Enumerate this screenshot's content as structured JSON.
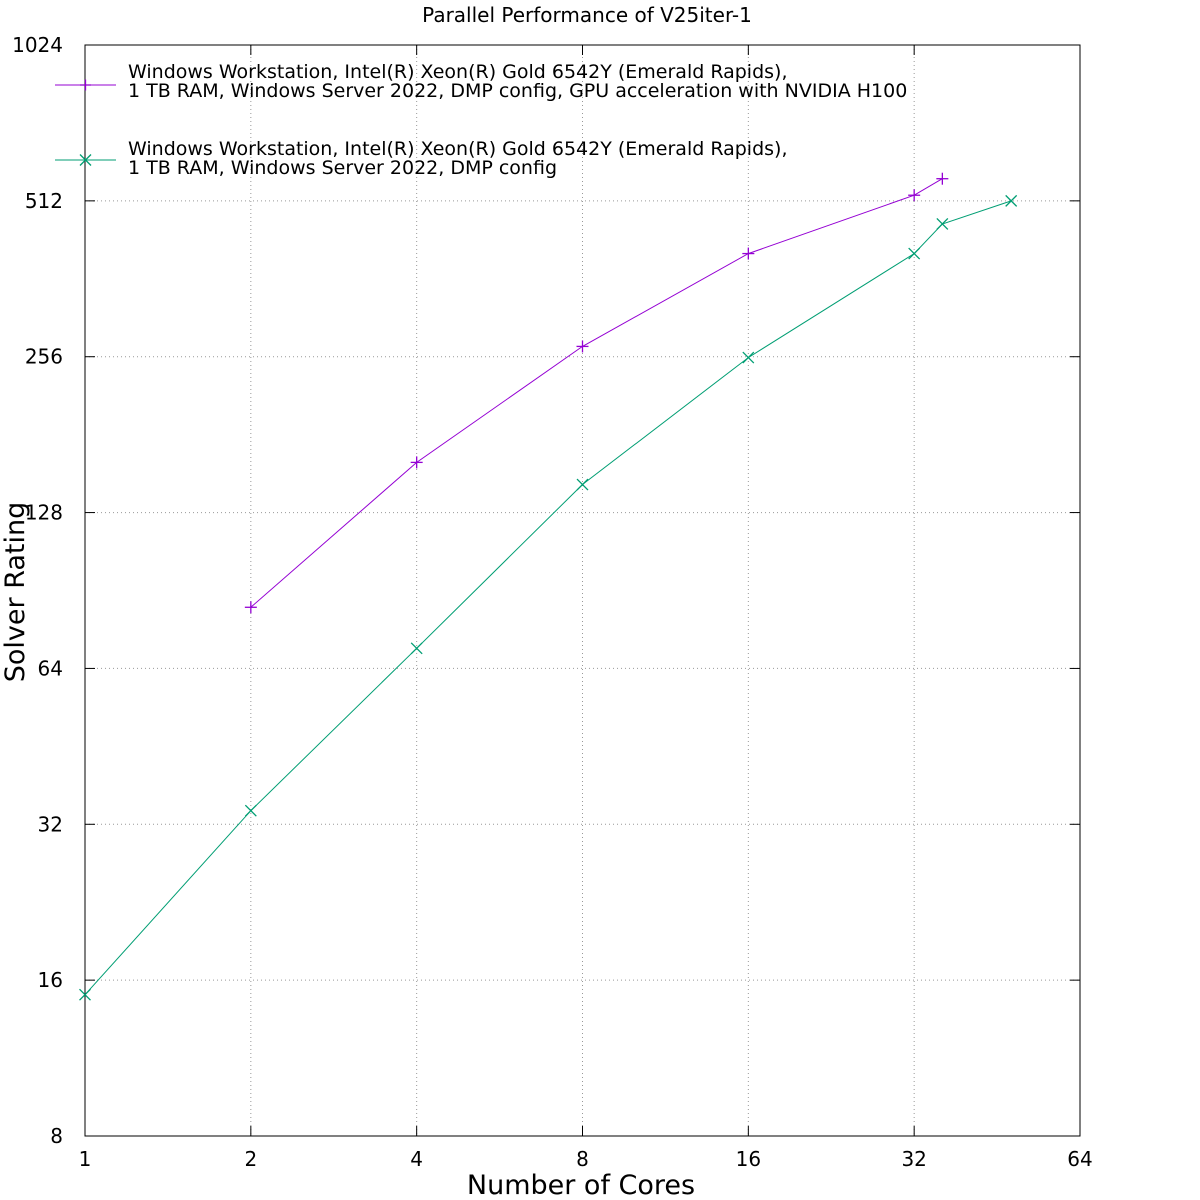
{
  "chart_data": {
    "type": "line",
    "title": "Parallel Performance of V25iter-1",
    "xlabel": "Number of Cores",
    "ylabel": "Solver Rating",
    "x_scale": "log2",
    "y_scale": "log2",
    "xlim": [
      1,
      64
    ],
    "ylim": [
      8,
      1024
    ],
    "x_ticks": [
      1,
      2,
      4,
      8,
      16,
      32,
      64
    ],
    "x_tick_labels": [
      "1",
      "2",
      "4",
      "8",
      "16",
      "32",
      "64"
    ],
    "y_ticks": [
      8,
      16,
      32,
      64,
      128,
      256,
      512,
      1024
    ],
    "y_tick_labels": [
      "8",
      "16",
      "32",
      "64",
      "128",
      "256",
      "512",
      "1024"
    ],
    "grid": true,
    "legend_position": "top-left",
    "series": [
      {
        "name_lines": [
          "Windows Workstation, Intel(R) Xeon(R) Gold 6542Y (Emerald Rapids),",
          "1 TB RAM, Windows Server 2022, DMP config, GPU acceleration with NVIDIA H100"
        ],
        "color": "#9400d3",
        "marker": "plus",
        "x": [
          2,
          4,
          8,
          16,
          32,
          36
        ],
        "y": [
          84,
          160,
          268,
          405,
          525,
          565
        ]
      },
      {
        "name_lines": [
          "Windows Workstation, Intel(R) Xeon(R) Gold 6542Y (Emerald Rapids),",
          "1 TB RAM, Windows Server 2022, DMP config"
        ],
        "color": "#009e73",
        "marker": "cross",
        "x": [
          1,
          2,
          4,
          8,
          16,
          32,
          36,
          48
        ],
        "y": [
          15,
          34,
          70,
          145,
          255,
          405,
          462,
          512
        ]
      }
    ]
  }
}
